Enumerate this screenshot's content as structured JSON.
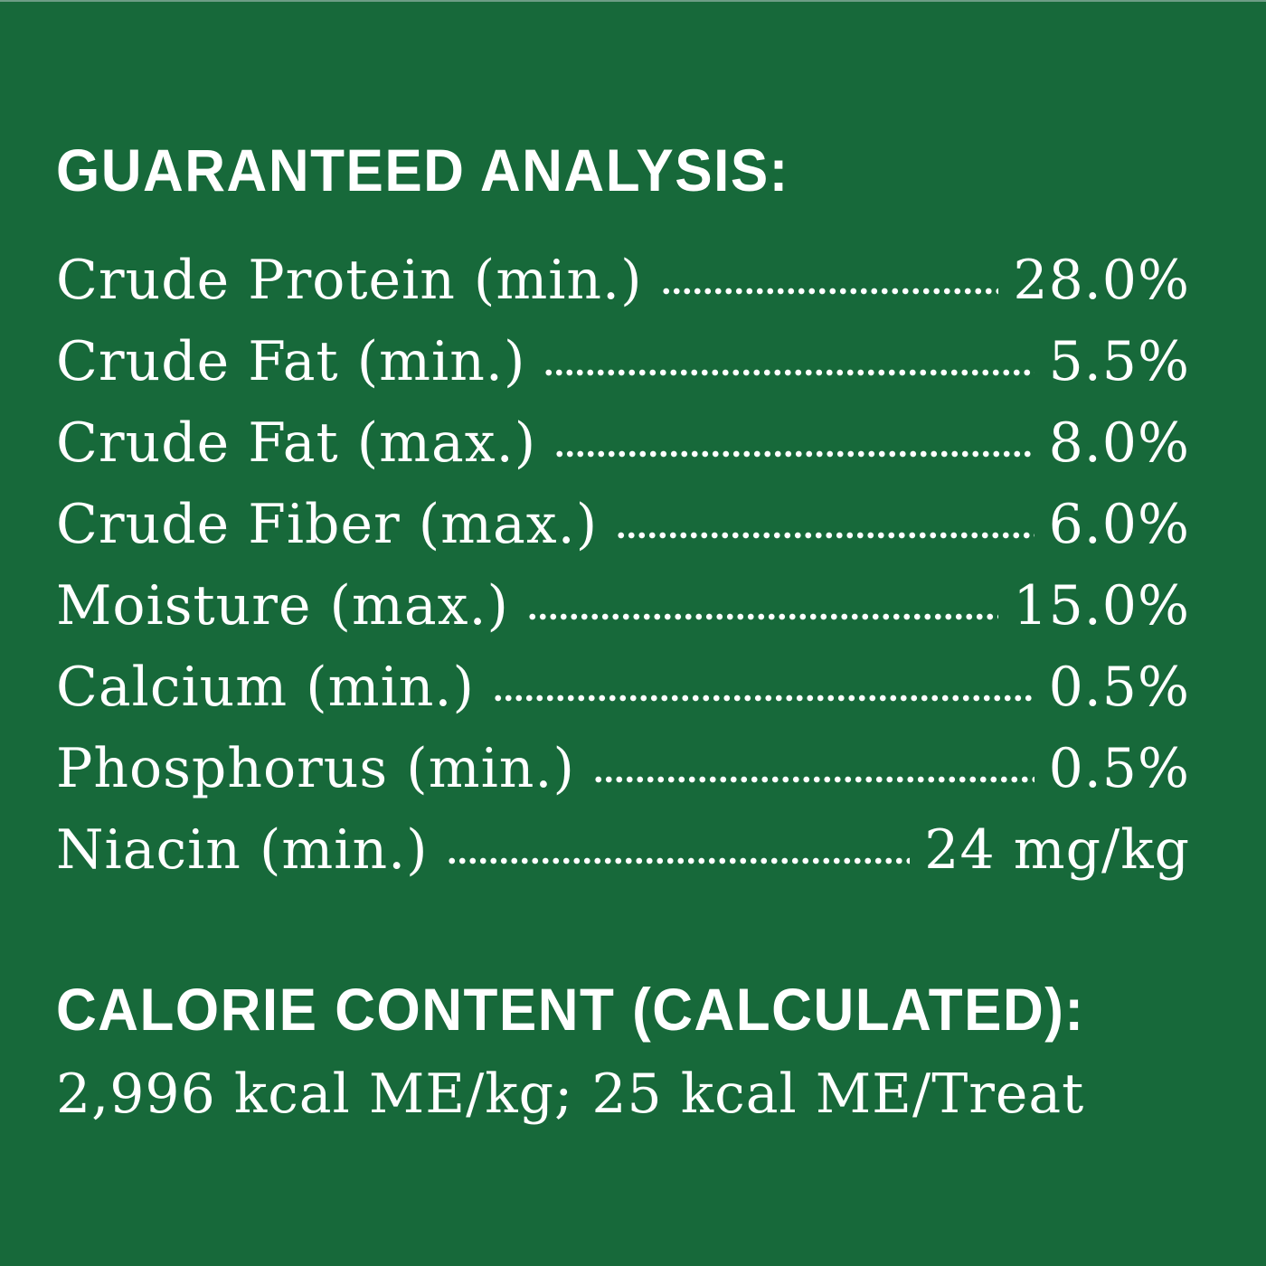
{
  "colors": {
    "background": "#17693A",
    "text": "#FFFFFF"
  },
  "guaranteed_analysis": {
    "title": "GUARANTEED ANALYSIS:",
    "rows": [
      {
        "label": "Crude Protein (min.)",
        "value": "28.0%"
      },
      {
        "label": "Crude Fat (min.)",
        "value": "5.5%"
      },
      {
        "label": "Crude Fat (max.)",
        "value": "8.0%"
      },
      {
        "label": "Crude Fiber (max.)",
        "value": "6.0%"
      },
      {
        "label": "Moisture (max.)",
        "value": "15.0%"
      },
      {
        "label": "Calcium (min.)",
        "value": "0.5%"
      },
      {
        "label": "Phosphorus (min.)",
        "value": "0.5%"
      },
      {
        "label": "Niacin (min.)",
        "value": "24 mg/kg"
      }
    ]
  },
  "calorie_content": {
    "title": "CALORIE CONTENT (CALCULATED):",
    "line": "2,996 kcal ME/kg; 25 kcal ME/Treat"
  }
}
